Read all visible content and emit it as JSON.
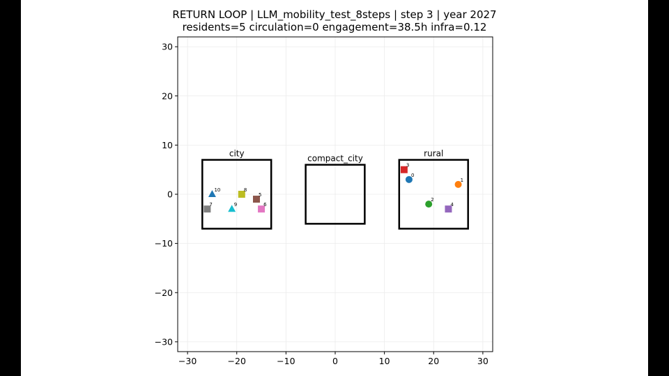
{
  "title_line1": "RETURN LOOP | LLM_mobility_test_8steps | step 3 | year 2027",
  "title_line2": "residents=5  circulation=0  engagement=38.5h  infra=0.12",
  "chart_data": {
    "type": "scatter",
    "title": "RETURN LOOP | LLM_mobility_test_8steps | step 3 | year 2027",
    "subtitle": "residents=5  circulation=0  engagement=38.5h  infra=0.12",
    "xlabel": "",
    "ylabel": "",
    "xlim": [
      -32,
      32
    ],
    "ylim": [
      -32,
      32
    ],
    "xticks": [
      -30,
      -20,
      -10,
      0,
      10,
      20,
      30
    ],
    "yticks": [
      -30,
      -20,
      -10,
      0,
      10,
      20,
      30
    ],
    "xtick_labels": [
      "−30",
      "−20",
      "−10",
      "0",
      "10",
      "20",
      "30"
    ],
    "ytick_labels": [
      "−30",
      "−20",
      "−10",
      "0",
      "10",
      "20",
      "30"
    ],
    "grid": true,
    "regions": [
      {
        "label": "city",
        "x0": -27,
        "x1": -13,
        "y0": -7,
        "y1": 7
      },
      {
        "label": "compact_city",
        "x0": -6,
        "x1": 6,
        "y0": -6,
        "y1": 6
      },
      {
        "label": "rural",
        "x0": 13,
        "x1": 27,
        "y0": -7,
        "y1": 7
      }
    ],
    "points": [
      {
        "label": "0",
        "x": 15,
        "y": 3,
        "marker": "circle",
        "color": "#1f77b4"
      },
      {
        "label": "1",
        "x": 25,
        "y": 2,
        "marker": "circle",
        "color": "#ff7f0e"
      },
      {
        "label": "2",
        "x": 19,
        "y": -2,
        "marker": "circle",
        "color": "#2ca02c"
      },
      {
        "label": "3",
        "x": 14,
        "y": 5,
        "marker": "square",
        "color": "#d62728"
      },
      {
        "label": "4",
        "x": 23,
        "y": -3,
        "marker": "square",
        "color": "#9467bd"
      },
      {
        "label": "5",
        "x": -16,
        "y": -1,
        "marker": "square",
        "color": "#8c564b"
      },
      {
        "label": "6",
        "x": -15,
        "y": -3,
        "marker": "square",
        "color": "#e377c2"
      },
      {
        "label": "7",
        "x": -26,
        "y": -3,
        "marker": "square",
        "color": "#7f7f7f"
      },
      {
        "label": "8",
        "x": -19,
        "y": 0,
        "marker": "square",
        "color": "#bcbd22"
      },
      {
        "label": "9",
        "x": -21,
        "y": -3,
        "marker": "triangle",
        "color": "#17becf"
      },
      {
        "label": "10",
        "x": -25,
        "y": 0,
        "marker": "triangle",
        "color": "#1f77b4"
      }
    ]
  }
}
